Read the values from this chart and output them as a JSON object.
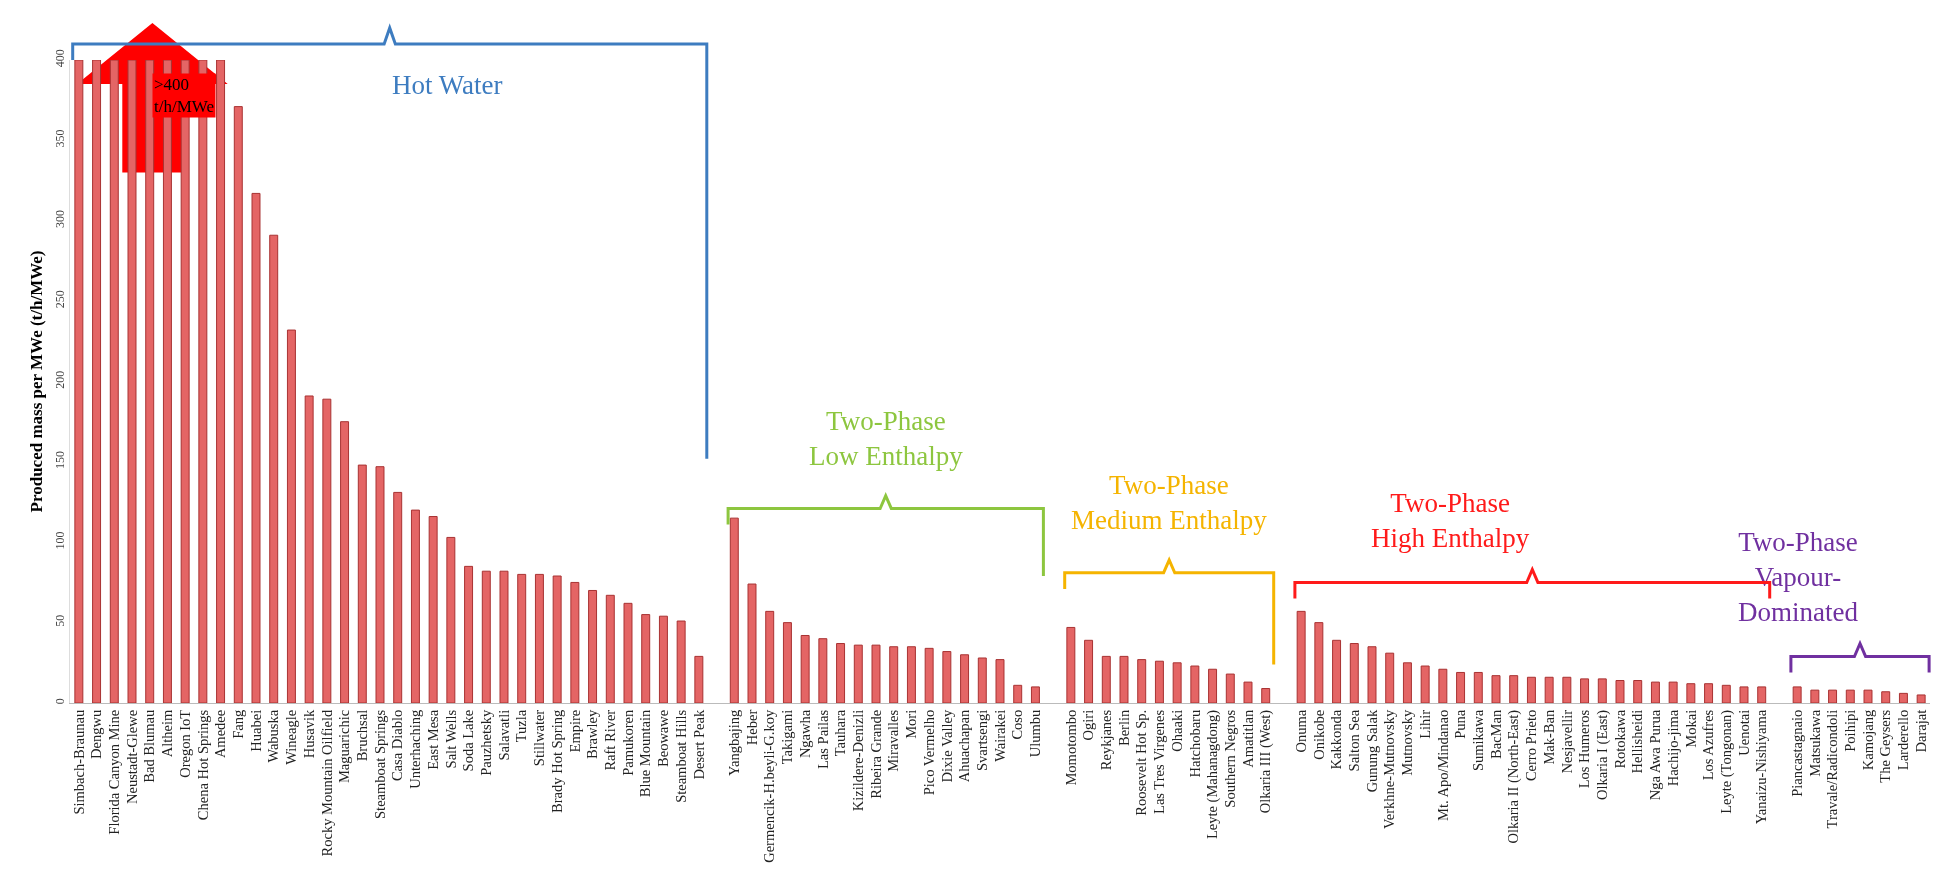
{
  "chart_data": {
    "type": "bar",
    "ylabel": "Produced mass per MWe (t/h/MWe)",
    "categories": [
      "Simbach-Braunau",
      "Dengwu",
      "Florida Canyon Mine",
      "Neustadt-Glewe",
      "Bad Blumau",
      "Altheim",
      "Oregon IoT",
      "Chena Hot Springs",
      "Amedee",
      "Fang",
      "Huabei",
      "Wabuska",
      "Wineagle",
      "Husavik",
      "Rocky Mountain Oilfield",
      "Maguarichic",
      "Bruchsal",
      "Steamboat Springs",
      "Casa Diablo",
      "Unterhaching",
      "East Mesa",
      "Salt Wells",
      "Soda Lake",
      "Pauzhetsky",
      "Salavatli",
      "Tuzla",
      "Stillwater",
      "Brady Hot Spring",
      "Empire",
      "Brawley",
      "Raft River",
      "Pamukoren",
      "Blue Mountain",
      "Beowawe",
      "Steamboat Hills",
      "Desert Peak",
      null,
      "Yangbajing",
      "Heber",
      "Germencik-H.beyli-G.koy",
      "Takigami",
      "Ngawha",
      "Las Pailas",
      "Tauhara",
      "Kizildere-Denizli",
      "Ribeira Grande",
      "Miravalles",
      "Mori",
      "Pico Vermelho",
      "Dixie Valley",
      "Ahuachapan",
      "Svartsengi",
      "Wairakei",
      "Coso",
      "Ulumbu",
      null,
      "Momotombo",
      "Ogiri",
      "Reykjanes",
      "Berlin",
      "Roosevelt Hot Sp.",
      "Las Tres Virgenes",
      "Ohaaki",
      "Hatchobaru",
      "Leyte (Mahanagdong)",
      "Southern Negros",
      "Amatitlan",
      "Olkaria III (West)",
      null,
      "Onuma",
      "Onikobe",
      "Kakkonda",
      "Salton Sea",
      "Gunung Salak",
      "Verkhne-Mutnovsky",
      "Mutnovsky",
      "Lihir",
      "Mt. Apo/Mindanao",
      "Puna",
      "Sumikawa",
      "BacMan",
      "Olkaria II (North-East)",
      "Cerro Prieto",
      "Mak-Ban",
      "Nesjavellir",
      "Los Humeros",
      "Olkaria I (East)",
      "Rotokawa",
      "Hellisheidi",
      "Nga Awa Purua",
      "Hachijo-jima",
      "Mokai",
      "Los Azufres",
      "Leyte (Tongonan)",
      "Uenotai",
      "Yanaizu-Nishiyama",
      null,
      "Piancastagnaio",
      "Matsukawa",
      "Travale/Radicondoli",
      "Poihipi",
      "Kamojang",
      "The Geysers",
      "Larderello",
      "Darajat"
    ],
    "values": [
      400,
      400,
      400,
      400,
      400,
      400,
      400,
      400,
      400,
      371,
      317,
      291,
      232,
      191,
      189,
      175,
      148,
      147,
      131,
      120,
      116,
      103,
      85,
      82,
      82,
      80,
      80,
      79,
      75,
      70,
      67,
      62,
      55,
      54,
      51,
      29,
      null,
      115,
      74,
      57,
      50,
      42,
      40,
      37,
      36,
      36,
      35,
      35,
      34,
      32,
      30,
      28,
      27,
      11,
      10,
      null,
      47,
      39,
      29,
      29,
      27,
      26,
      25,
      23,
      21,
      18,
      13,
      9,
      null,
      57,
      50,
      39,
      37,
      35,
      31,
      25,
      23,
      21,
      19,
      19,
      17,
      17,
      16,
      16,
      16,
      15,
      15,
      14,
      14,
      13,
      13,
      12,
      12,
      11,
      10,
      10,
      null,
      10,
      8,
      8,
      8,
      8,
      7,
      6,
      5
    ],
    "color": "#e46565",
    "ylim": [
      0,
      400
    ],
    "yticks": [
      0,
      50,
      100,
      150,
      200,
      250,
      300,
      350,
      400
    ],
    "grid": false,
    "annotations": [
      ">400\nt/h/MWe",
      "Hot Water",
      "Two-Phase\nLow Enthalpy",
      "Two-Phase\nMedium Enthalpy",
      "Two-Phase\nHigh Enthalpy",
      "Two-Phase\nVapour-\nDominated"
    ]
  }
}
